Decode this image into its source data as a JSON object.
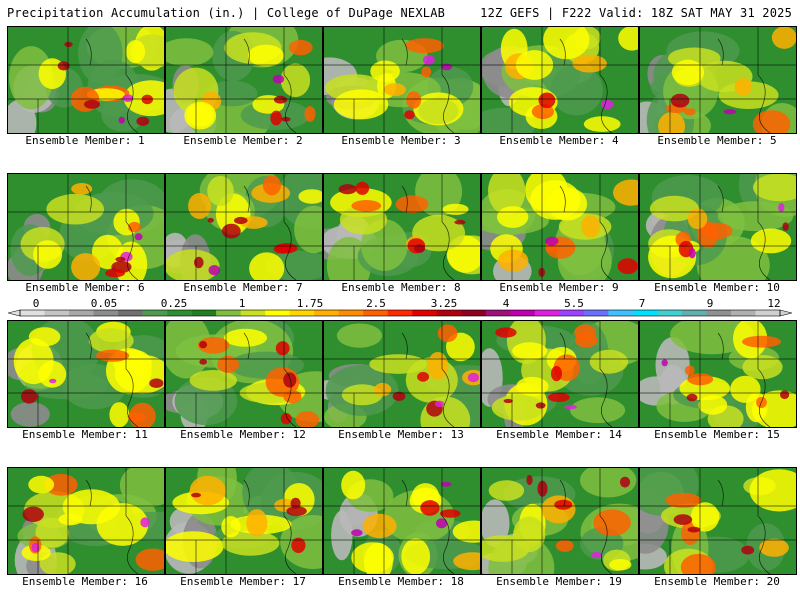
{
  "header": {
    "left": "Precipitation Accumulation (in.) | College of DuPage NEXLAB",
    "right": "12Z GEFS | F222 Valid: 18Z SAT MAY 31 2025"
  },
  "colorbar": {
    "labels": [
      "0",
      "0.05",
      "0.25",
      "1",
      "1.75",
      "2.5",
      "3.25",
      "4",
      "5.5",
      "7",
      "9",
      "12"
    ],
    "colors": [
      "#e0e0e0",
      "#c4c4c4",
      "#a8a8a8",
      "#8c8c8c",
      "#707070",
      "#4e9a4e",
      "#2f8f2f",
      "#208020",
      "#7fbf3f",
      "#c8e020",
      "#ffff00",
      "#ffd700",
      "#ffb000",
      "#ff8c00",
      "#ff6000",
      "#ff2a00",
      "#e00000",
      "#b00010",
      "#900020",
      "#a0107a",
      "#c000b0",
      "#e020e0",
      "#a040ff",
      "#6a70ff",
      "#40c0ff",
      "#00e0ff",
      "#40d0d0",
      "#60b0b0",
      "#909090",
      "#b0b0b0",
      "#d0d0d0"
    ]
  },
  "members": [
    {
      "caption": "Ensemble Member: 1"
    },
    {
      "caption": "Ensemble Member: 2"
    },
    {
      "caption": "Ensemble Member: 3"
    },
    {
      "caption": "Ensemble Member: 4"
    },
    {
      "caption": "Ensemble Member: 5"
    },
    {
      "caption": "Ensemble Member: 6"
    },
    {
      "caption": "Ensemble Member: 7"
    },
    {
      "caption": "Ensemble Member: 8"
    },
    {
      "caption": "Ensemble Member: 9"
    },
    {
      "caption": "Ensemble Member: 10"
    },
    {
      "caption": "Ensemble Member: 11"
    },
    {
      "caption": "Ensemble Member: 12"
    },
    {
      "caption": "Ensemble Member: 13"
    },
    {
      "caption": "Ensemble Member: 14"
    },
    {
      "caption": "Ensemble Member: 15"
    },
    {
      "caption": "Ensemble Member: 16"
    },
    {
      "caption": "Ensemble Member: 17"
    },
    {
      "caption": "Ensemble Member: 18"
    },
    {
      "caption": "Ensemble Member: 19"
    },
    {
      "caption": "Ensemble Member: 20"
    }
  ]
}
